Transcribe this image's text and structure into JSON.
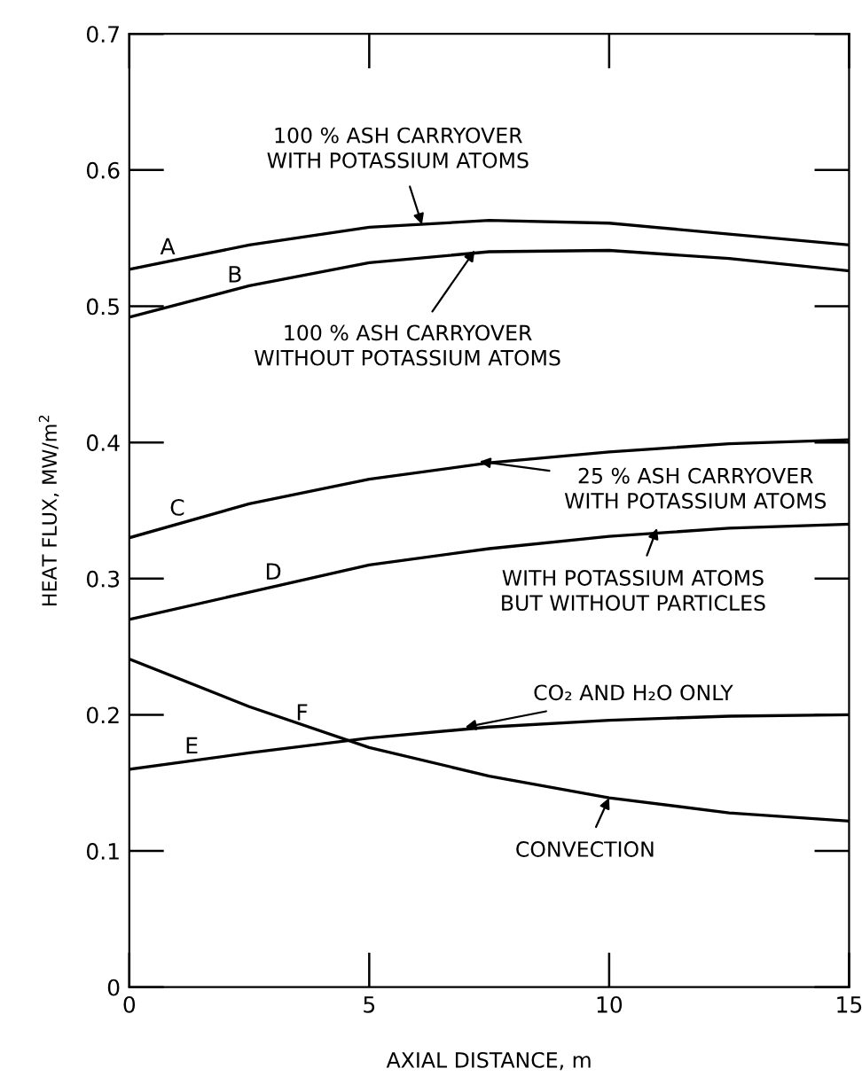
{
  "chart_data": {
    "type": "line",
    "xlabel": "AXIAL DISTANCE, m",
    "ylabel": "HEAT FLUX, MW/m$^{2}$",
    "x": [
      0,
      2.5,
      5,
      7.5,
      10,
      12.5,
      15
    ],
    "series": [
      {
        "name": "A",
        "color": "#000000",
        "values": [
          0.527,
          0.545,
          0.558,
          0.563,
          0.561,
          0.553,
          0.545
        ]
      },
      {
        "name": "B",
        "color": "#000000",
        "values": [
          0.492,
          0.515,
          0.532,
          0.54,
          0.541,
          0.535,
          0.526
        ]
      },
      {
        "name": "C",
        "color": "#000000",
        "values": [
          0.33,
          0.355,
          0.373,
          0.385,
          0.393,
          0.399,
          0.402
        ]
      },
      {
        "name": "D",
        "color": "#000000",
        "values": [
          0.27,
          0.29,
          0.31,
          0.322,
          0.331,
          0.337,
          0.34
        ]
      },
      {
        "name": "E",
        "color": "#000000",
        "values": [
          0.16,
          0.172,
          0.183,
          0.191,
          0.196,
          0.199,
          0.2
        ]
      },
      {
        "name": "F",
        "color": "#000000",
        "values": [
          0.241,
          0.206,
          0.176,
          0.155,
          0.139,
          0.128,
          0.122
        ]
      }
    ],
    "annotations": [
      {
        "text": "100 % ASH CARRYOVER\nWITH POTASSIUM ATOMS",
        "x": 6.1,
        "y": 0.56
      },
      {
        "text": "100 % ASH CARRYOVER\nWITHOUT POTASSIUM ATOMS",
        "x": 7.2,
        "y": 0.541
      },
      {
        "text": "25 % ASH CARRYOVER\nWITH POTASSIUM ATOMS",
        "x": 7.3,
        "y": 0.386
      },
      {
        "text": "WITH POTASSIUM ATOMS\nBUT WITHOUT PARTICLES",
        "x": 11,
        "y": 0.337
      },
      {
        "text": "CO₂ AND H₂O ONLY",
        "x": 7,
        "y": 0.191
      },
      {
        "text": "CONVECTION",
        "x": 10,
        "y": 0.139
      }
    ],
    "xlim": [
      0,
      15
    ],
    "xticks": [
      0,
      5,
      10,
      15
    ],
    "ylim": [
      0,
      0.7
    ],
    "yticks": [
      0,
      0.1,
      0.2,
      0.3,
      0.4,
      0.5,
      0.6,
      0.7
    ],
    "grid": false,
    "legend": false,
    "marker": "none",
    "line_style": "solid"
  }
}
